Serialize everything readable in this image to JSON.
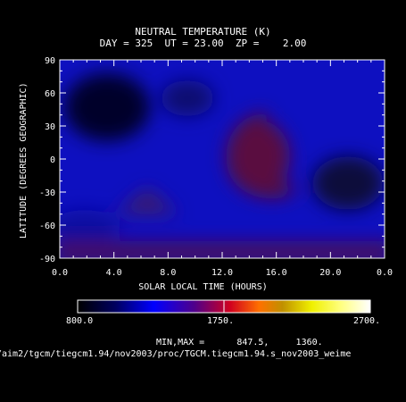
{
  "chart_data": {
    "type": "heatmap",
    "title": "NEUTRAL TEMPERATURE (K)",
    "subtitle": "DAY = 325  UT = 23.00  ZP =    2.00",
    "xlabel": "SOLAR LOCAL TIME (HOURS)",
    "ylabel": "LATITUDE (DEGREES GEOGRAPHIC)",
    "xlim": [
      0,
      24
    ],
    "ylim": [
      -90,
      90
    ],
    "x_ticks": [
      "0.0",
      "4.0",
      "8.0",
      "12.0",
      "16.0",
      "20.0",
      "0.0"
    ],
    "y_ticks": [
      "90",
      "60",
      "30",
      "0",
      "-30",
      "-60",
      "-90"
    ],
    "colorbar": {
      "min": "800.0",
      "mid": "1750.",
      "max": "2700.",
      "range": [
        800,
        2700
      ]
    },
    "minmax_label": "MIN,MAX =",
    "min_value": "847.5,",
    "max_value": "1360.",
    "field_features": [
      {
        "label": "dayside warm region",
        "lt": 15,
        "lat": 5,
        "value_k": 1360
      },
      {
        "label": "southern warm lobe",
        "lt": 7,
        "lat": -45,
        "value_k": 1150
      },
      {
        "label": "south polar band",
        "lt": 12,
        "lat": -75,
        "value_k": 1200
      },
      {
        "label": "nightside cold region",
        "lt": 3,
        "lat": 35,
        "value_k": 847.5
      }
    ]
  },
  "footer": {
    "path": "/aim2/tgcm/tiegcm1.94/nov2003/proc/TGCM.tiegcm1.94.s_nov2003_weime"
  }
}
